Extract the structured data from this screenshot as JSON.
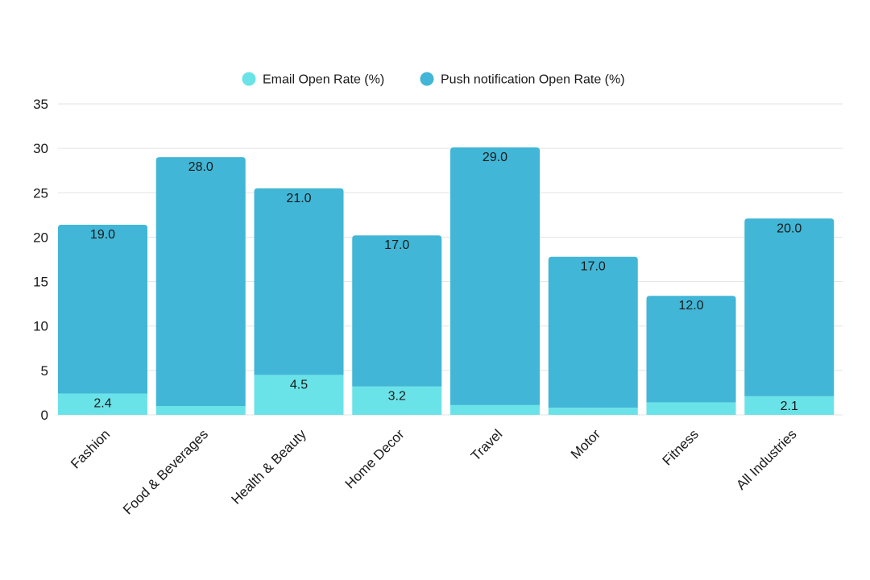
{
  "chart_data": {
    "type": "bar",
    "stacked": true,
    "categories": [
      "Fashion",
      "Food & Beverages",
      "Health & Beauty",
      "Home Decor",
      "Travel",
      "Motor",
      "Fitness",
      "All Industries"
    ],
    "series": [
      {
        "name": "Email Open Rate (%)",
        "color": "#6ae3e8",
        "values": [
          2.4,
          1.0,
          4.5,
          3.2,
          1.1,
          0.8,
          1.4,
          2.1
        ],
        "labels": [
          "2.4",
          "",
          "4.5",
          "3.2",
          "",
          "",
          "",
          "2.1"
        ]
      },
      {
        "name": "Push notification Open Rate (%)",
        "color": "#41b6d6",
        "values": [
          19.0,
          28.0,
          21.0,
          17.0,
          29.0,
          17.0,
          12.0,
          20.0
        ],
        "labels": [
          "19.0",
          "28.0",
          "21.0",
          "17.0",
          "29.0",
          "17.0",
          "12.0",
          "20.0"
        ]
      }
    ],
    "yticks": [
      "0",
      "5",
      "10",
      "15",
      "20",
      "25",
      "30",
      "35"
    ],
    "ylim": [
      0,
      35
    ],
    "grid": true,
    "legend_position": "top-center",
    "title": "",
    "xlabel": "",
    "ylabel": ""
  }
}
